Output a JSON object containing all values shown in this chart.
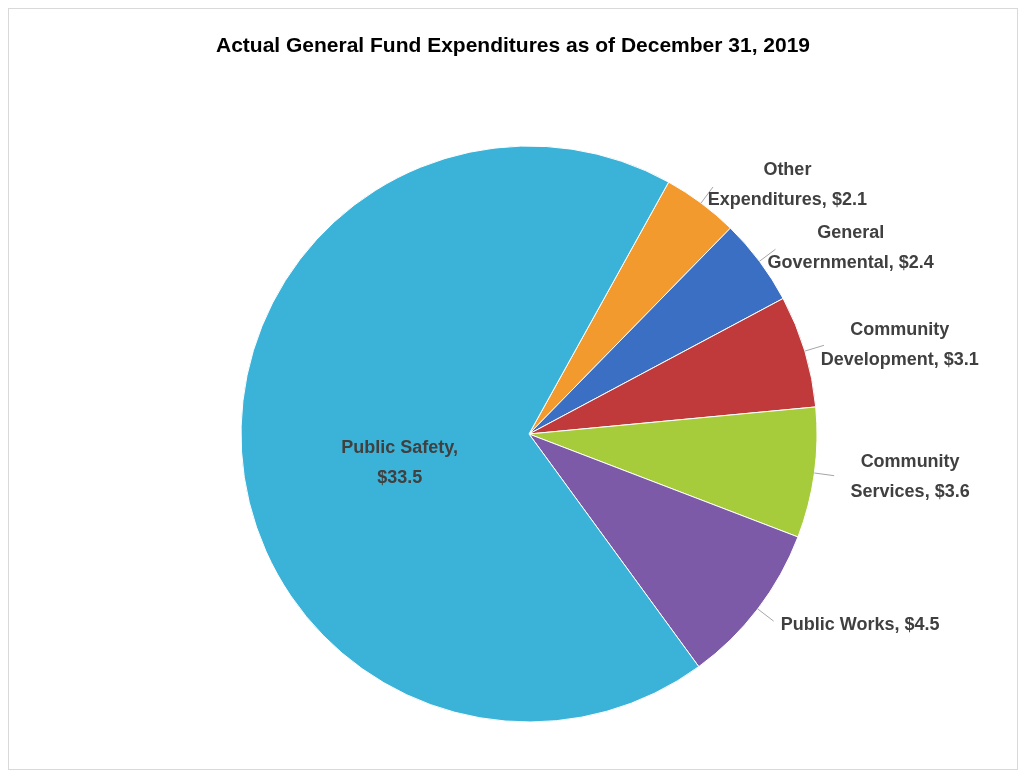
{
  "chart_data": {
    "type": "pie",
    "title": "Actual General Fund Expenditures as of December 31, 2019",
    "categories": [
      "Other Expenditures",
      "General Governmental",
      "Community Development",
      "Community Services",
      "Public Works",
      "Public Safety"
    ],
    "values": [
      2.1,
      2.4,
      3.1,
      3.6,
      4.5,
      33.5
    ],
    "colors": [
      "#f39a2e",
      "#3a6fc4",
      "#c0393b",
      "#a6cc3c",
      "#7d5aa8",
      "#3bb3d9"
    ],
    "value_labels": [
      ", $2.1",
      ", $2.4",
      ", $3.1",
      ", $3.6",
      ", $4.5",
      ", $33.5"
    ]
  }
}
